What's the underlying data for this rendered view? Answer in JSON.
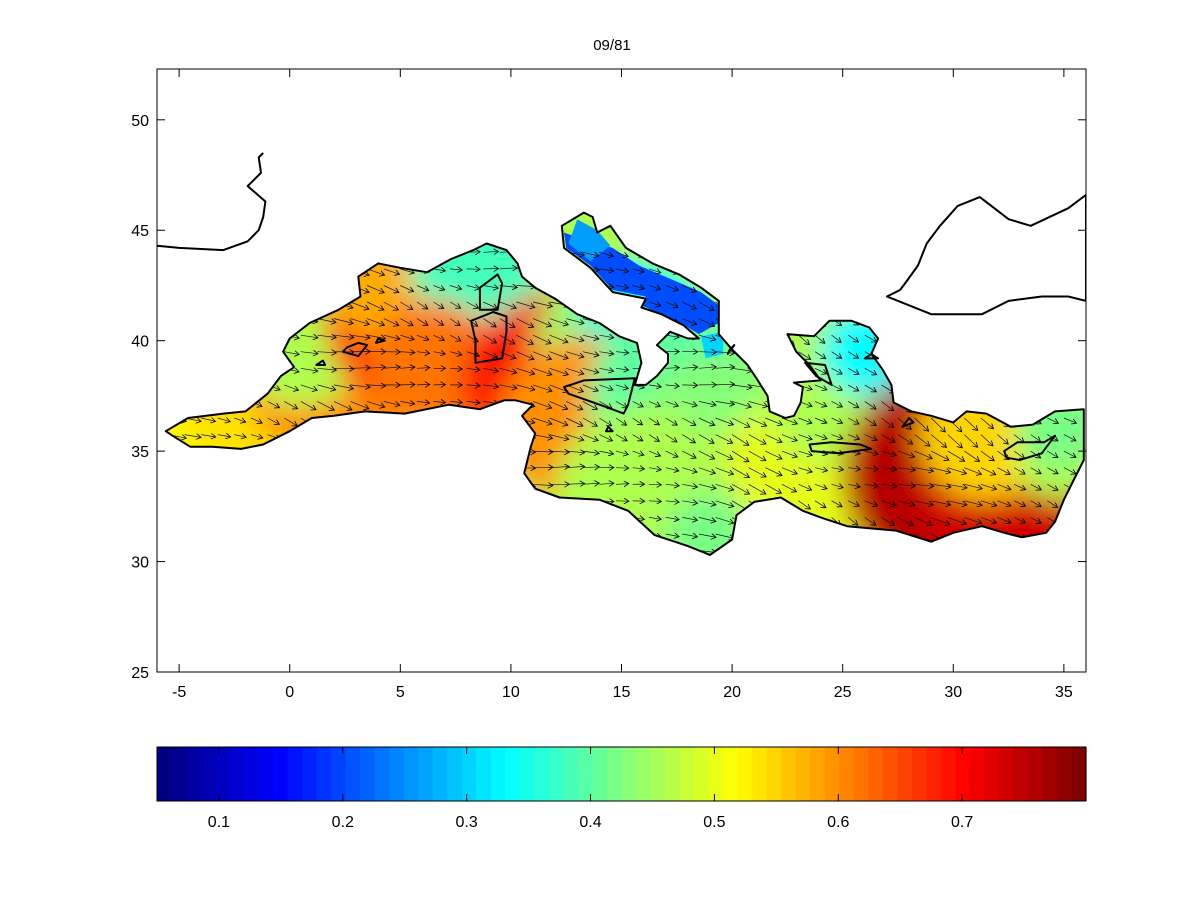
{
  "title": "09/81",
  "map": {
    "xlim": [
      -6,
      36
    ],
    "ylim": [
      25,
      52.3
    ],
    "xticks": [
      -5,
      0,
      5,
      10,
      15,
      20,
      25,
      30,
      35
    ],
    "yticks": [
      25,
      30,
      35,
      40,
      45,
      50
    ],
    "xtick_labels": [
      "-5",
      "0",
      "5",
      "10",
      "15",
      "20",
      "25",
      "30",
      "35"
    ],
    "ytick_labels": [
      "25",
      "30",
      "35",
      "40",
      "45",
      "50"
    ],
    "colormap": "jet",
    "quiver": "wind vectors, mostly toward the southeast"
  },
  "colorbar": {
    "range": [
      0.05,
      0.8
    ],
    "ticks": [
      0.1,
      0.2,
      0.3,
      0.4,
      0.5,
      0.6,
      0.7
    ],
    "tick_labels": [
      "0.1",
      "0.2",
      "0.3",
      "0.4",
      "0.5",
      "0.6",
      "0.7"
    ]
  },
  "colors": {
    "land_line": "#000000",
    "axes": "#000000",
    "background": "#ffffff"
  }
}
